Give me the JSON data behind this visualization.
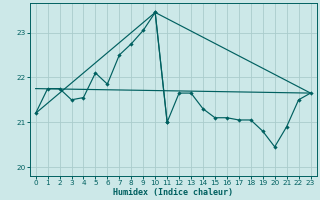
{
  "xlabel": "Humidex (Indice chaleur)",
  "bg_color": "#cce8e8",
  "grid_color": "#aacccc",
  "line_color": "#006060",
  "xlim": [
    -0.5,
    23.5
  ],
  "ylim": [
    19.8,
    23.65
  ],
  "yticks": [
    20,
    21,
    22,
    23
  ],
  "xticks": [
    0,
    1,
    2,
    3,
    4,
    5,
    6,
    7,
    8,
    9,
    10,
    11,
    12,
    13,
    14,
    15,
    16,
    17,
    18,
    19,
    20,
    21,
    22,
    23
  ],
  "curve1_x": [
    0,
    1,
    2,
    3,
    4,
    5,
    6,
    7,
    8,
    9,
    10,
    11
  ],
  "curve1_y": [
    21.2,
    21.75,
    21.75,
    21.5,
    21.55,
    22.1,
    21.85,
    22.5,
    22.75,
    23.05,
    23.45,
    21.0
  ],
  "curve2_x": [
    10,
    11,
    12,
    13,
    14,
    15,
    16,
    17,
    18,
    19,
    20,
    21,
    22,
    23
  ],
  "curve2_y": [
    23.45,
    21.0,
    21.65,
    21.65,
    21.3,
    21.1,
    21.1,
    21.05,
    21.05,
    20.8,
    20.45,
    20.9,
    21.5,
    21.65
  ],
  "trend1_x": [
    0,
    23
  ],
  "trend1_y": [
    21.75,
    21.65
  ],
  "trend2_x": [
    0,
    10,
    23
  ],
  "trend2_y": [
    21.2,
    23.45,
    21.65
  ]
}
